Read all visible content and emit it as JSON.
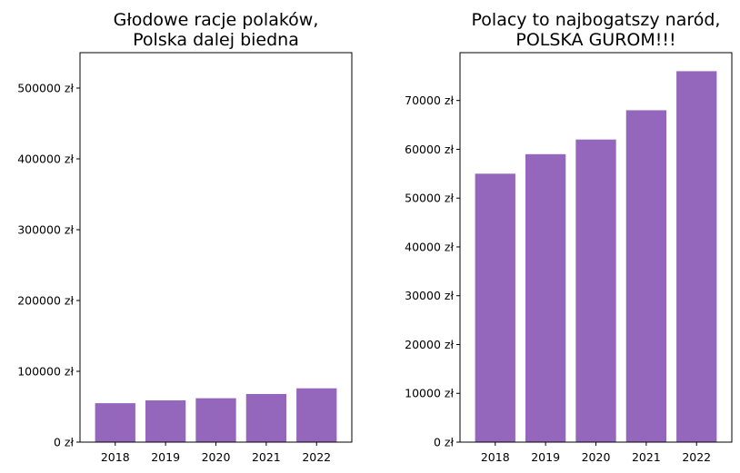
{
  "chart_data": [
    {
      "type": "bar",
      "title": "Głodowe racje polaków,\nPolska dalej biedna",
      "categories": [
        "2018",
        "2019",
        "2020",
        "2021",
        "2022"
      ],
      "values": [
        55000,
        59000,
        62000,
        68000,
        76000
      ],
      "ylim": [
        0,
        550000
      ],
      "yticks": [
        0,
        100000,
        200000,
        300000,
        400000,
        500000
      ],
      "ytick_labels": [
        "0 zł",
        "100000 zł",
        "200000 zł",
        "300000 zł",
        "400000 zł",
        "500000 zł"
      ],
      "color": "#9467bd",
      "grid": false
    },
    {
      "type": "bar",
      "title": "Polacy to najbogatszy naród,\nPOLSKA GUROM!!!",
      "categories": [
        "2018",
        "2019",
        "2020",
        "2021",
        "2022"
      ],
      "values": [
        55000,
        59000,
        62000,
        68000,
        76000
      ],
      "ylim": [
        0,
        79800
      ],
      "yticks": [
        0,
        10000,
        20000,
        30000,
        40000,
        50000,
        60000,
        70000
      ],
      "ytick_labels": [
        "0 zł",
        "10000 zł",
        "20000 zł",
        "30000 zł",
        "40000 zł",
        "50000 zł",
        "60000 zł",
        "70000 zł"
      ],
      "color": "#9467bd",
      "grid": false
    }
  ]
}
